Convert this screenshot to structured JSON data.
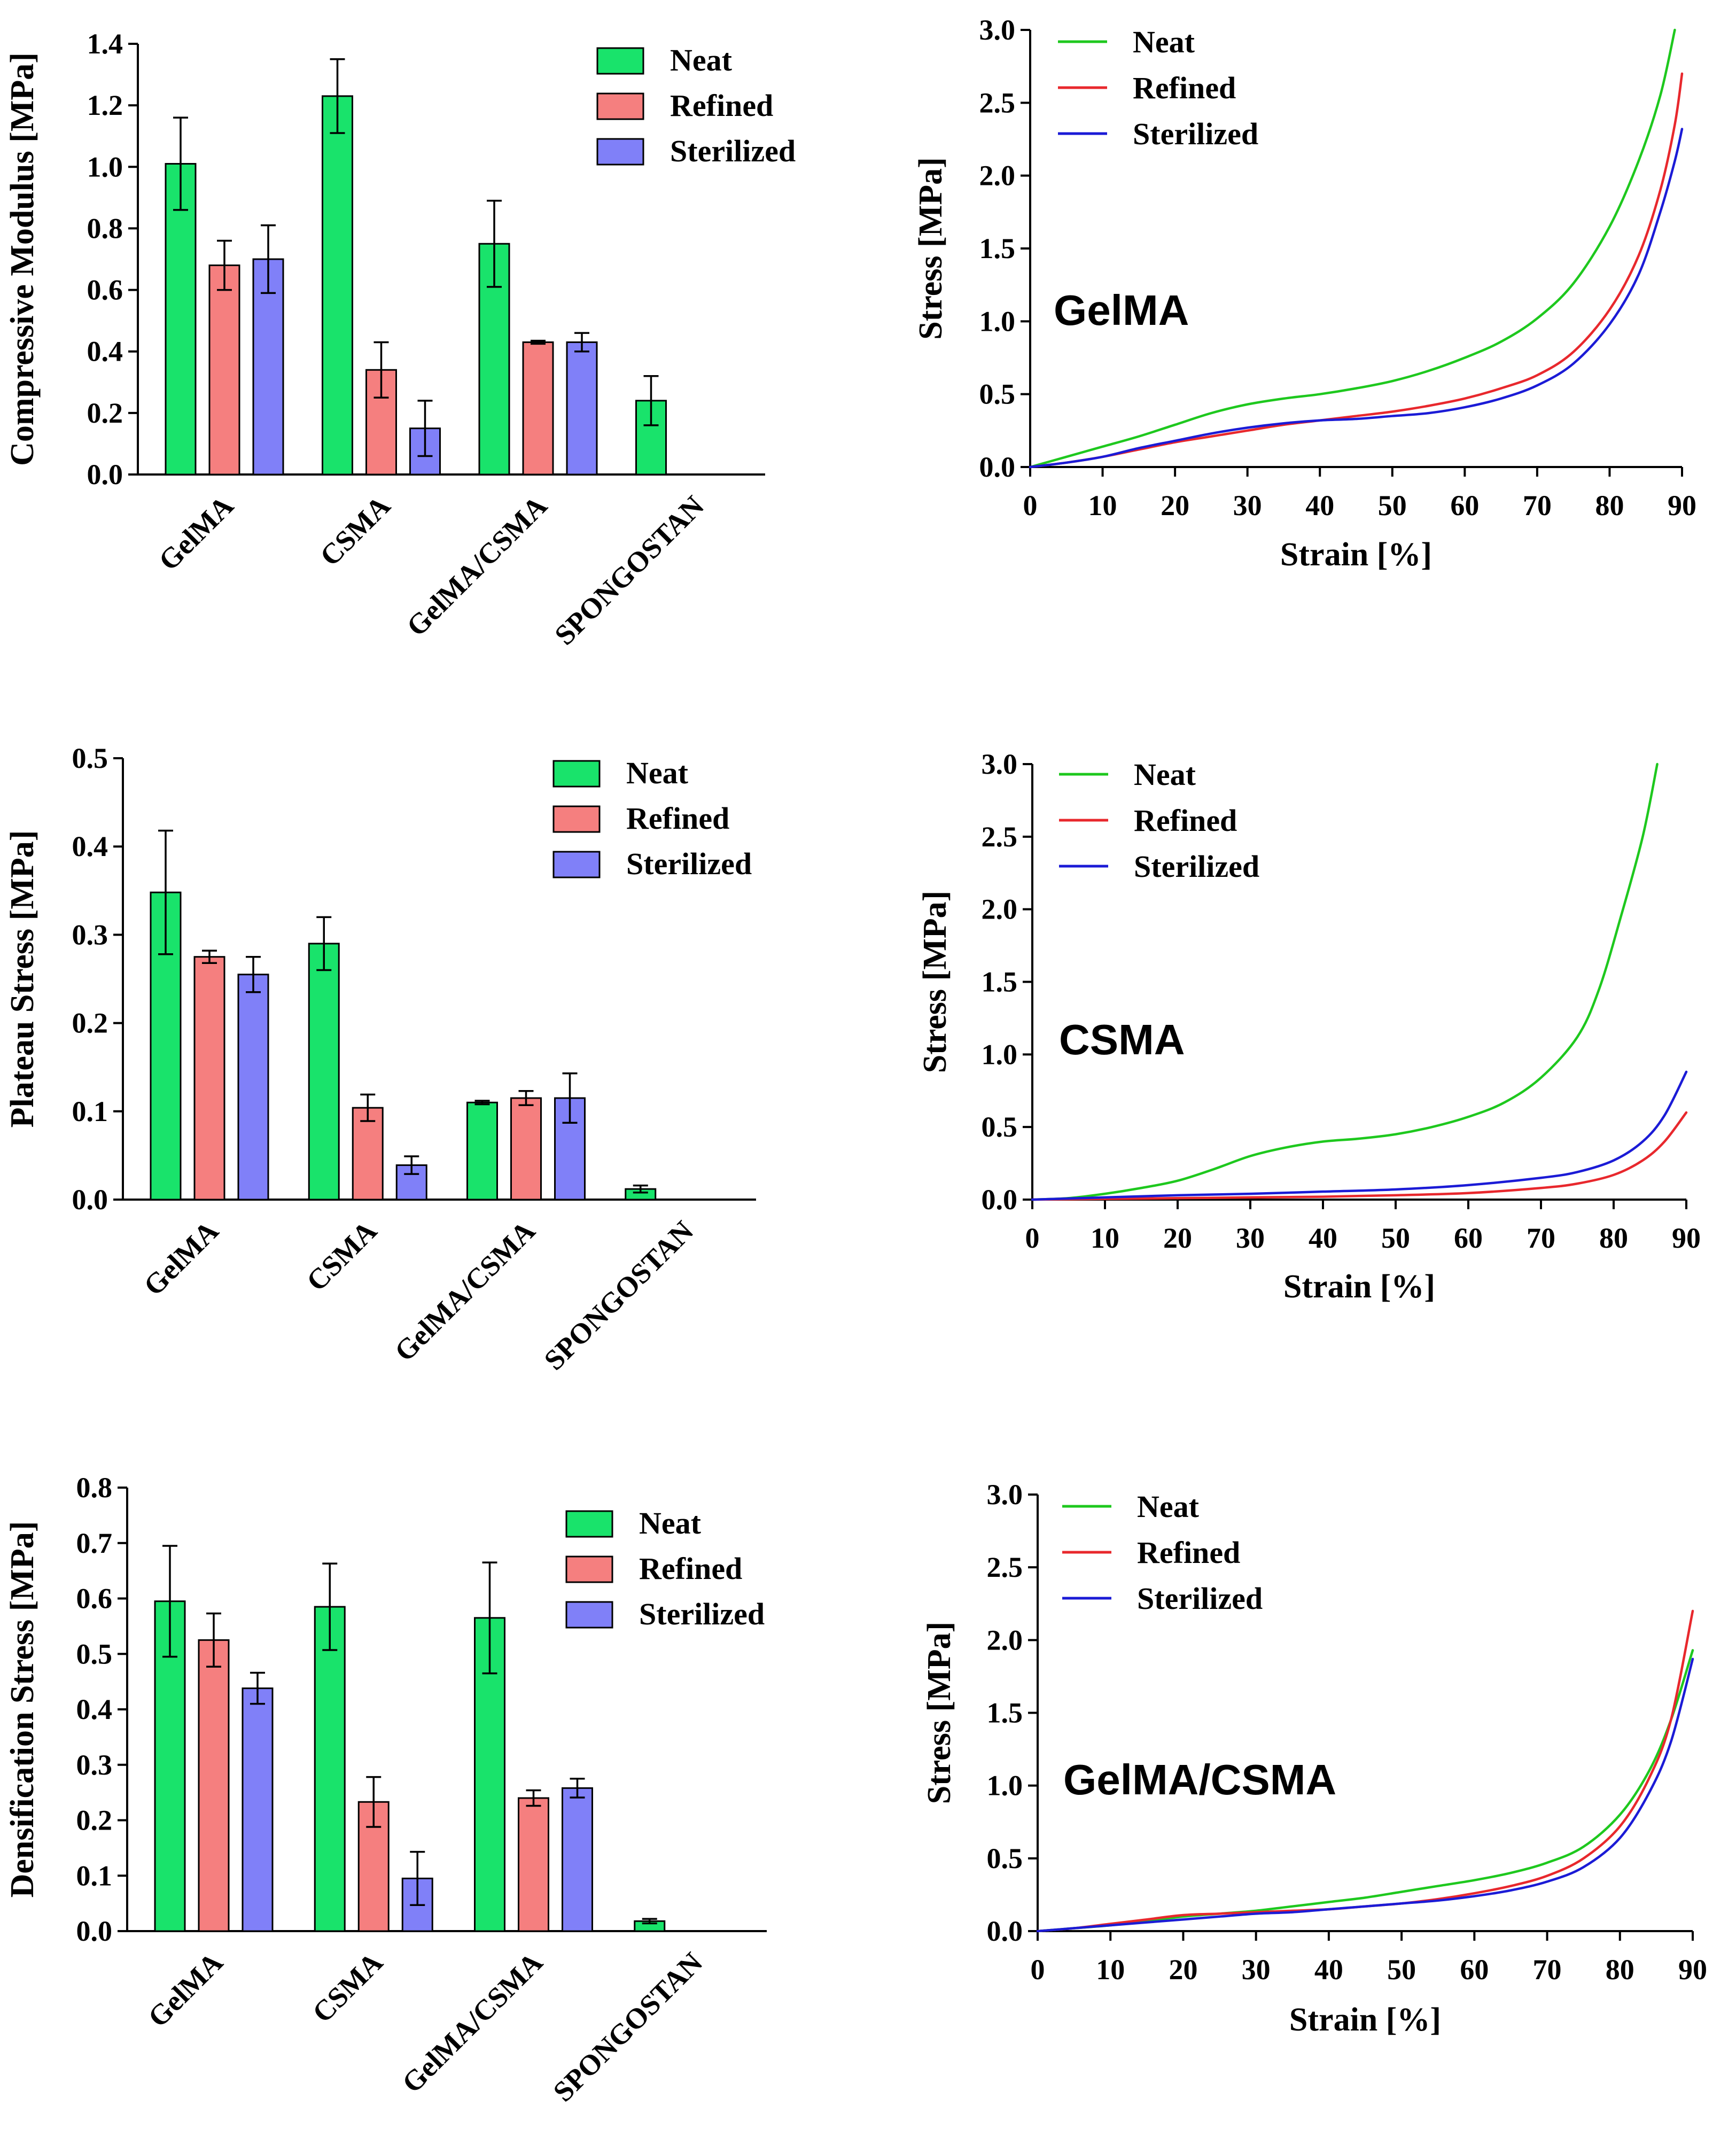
{
  "colors": {
    "neat_bar": "#19e36b",
    "refined_bar": "#f57f7f",
    "sterilized_bar": "#8080f8",
    "neat_line": "#1ec81e",
    "refined_line": "#e8282d",
    "sterilized_line": "#1b1bd6"
  },
  "chart_data": [
    {
      "id": "compressive-modulus",
      "type": "bar",
      "ylabel": "Compressive Modulus [MPa]",
      "ylim": [
        0,
        1.4
      ],
      "yticks": [
        0.0,
        0.2,
        0.4,
        0.6,
        0.8,
        1.0,
        1.2,
        1.4
      ],
      "ytick_labels": [
        "0.0",
        "0.2",
        "0.4",
        "0.6",
        "0.8",
        "1.0",
        "1.2",
        "1.4"
      ],
      "categories": [
        "GelMA",
        "CSMA",
        "GelMA/CSMA",
        "SPONGOSTAN"
      ],
      "legend": [
        "Neat",
        "Refined",
        "Sterilized"
      ],
      "series": [
        {
          "name": "Neat",
          "values": [
            1.01,
            1.23,
            0.75,
            0.24
          ],
          "errors": [
            0.15,
            0.12,
            0.14,
            0.08
          ]
        },
        {
          "name": "Refined",
          "values": [
            0.68,
            0.34,
            0.43,
            null
          ],
          "errors": [
            0.08,
            0.09,
            0.005,
            null
          ]
        },
        {
          "name": "Sterilized",
          "values": [
            0.7,
            0.15,
            0.43,
            null
          ],
          "errors": [
            0.11,
            0.09,
            0.03,
            null
          ]
        }
      ]
    },
    {
      "id": "gelma-stress-strain",
      "type": "line",
      "annotation": "GelMA",
      "xlabel": "Strain [%]",
      "ylabel": "Stress [MPa]",
      "xlim": [
        0,
        90
      ],
      "ylim": [
        0,
        3.0
      ],
      "xticks": [
        0,
        10,
        20,
        30,
        40,
        50,
        60,
        70,
        80,
        90
      ],
      "xtick_labels": [
        "0",
        "10",
        "20",
        "30",
        "40",
        "50",
        "60",
        "70",
        "80",
        "90"
      ],
      "yticks": [
        0.0,
        0.5,
        1.0,
        1.5,
        2.0,
        2.5,
        3.0
      ],
      "ytick_labels": [
        "0.0",
        "0.5",
        "1.0",
        "1.5",
        "2.0",
        "2.5",
        "3.0"
      ],
      "legend": [
        "Neat",
        "Refined",
        "Sterilized"
      ],
      "series": [
        {
          "name": "Neat",
          "x": [
            0,
            5,
            10,
            15,
            20,
            25,
            30,
            35,
            40,
            45,
            50,
            55,
            60,
            65,
            70,
            75,
            80,
            84,
            87,
            89
          ],
          "y": [
            0,
            0.07,
            0.14,
            0.21,
            0.29,
            0.37,
            0.43,
            0.47,
            0.5,
            0.54,
            0.59,
            0.66,
            0.75,
            0.86,
            1.02,
            1.26,
            1.65,
            2.1,
            2.55,
            3.0
          ]
        },
        {
          "name": "Refined",
          "x": [
            0,
            5,
            10,
            15,
            20,
            25,
            30,
            35,
            40,
            45,
            50,
            55,
            60,
            65,
            70,
            75,
            80,
            84,
            87,
            89,
            90
          ],
          "y": [
            0,
            0.03,
            0.07,
            0.12,
            0.17,
            0.21,
            0.25,
            0.29,
            0.32,
            0.35,
            0.38,
            0.42,
            0.47,
            0.54,
            0.63,
            0.79,
            1.08,
            1.45,
            1.9,
            2.35,
            2.7
          ]
        },
        {
          "name": "Sterilized",
          "x": [
            0,
            5,
            10,
            15,
            20,
            25,
            30,
            35,
            40,
            45,
            50,
            55,
            60,
            65,
            70,
            75,
            80,
            84,
            87,
            89,
            90
          ],
          "y": [
            0,
            0.03,
            0.07,
            0.13,
            0.18,
            0.23,
            0.27,
            0.3,
            0.32,
            0.33,
            0.35,
            0.37,
            0.41,
            0.47,
            0.56,
            0.71,
            0.98,
            1.32,
            1.75,
            2.1,
            2.32
          ]
        }
      ]
    },
    {
      "id": "plateau-stress",
      "type": "bar",
      "ylabel": "Plateau Stress [MPa]",
      "ylim": [
        0,
        0.5
      ],
      "yticks": [
        0.0,
        0.1,
        0.2,
        0.3,
        0.4,
        0.5
      ],
      "ytick_labels": [
        "0.0",
        "0.1",
        "0.2",
        "0.3",
        "0.4",
        "0.5"
      ],
      "categories": [
        "GelMA",
        "CSMA",
        "GelMA/CSMA",
        "SPONGOSTAN"
      ],
      "legend": [
        "Neat",
        "Refined",
        "Sterilized"
      ],
      "series": [
        {
          "name": "Neat",
          "values": [
            0.348,
            0.29,
            0.11,
            0.012
          ],
          "errors": [
            0.07,
            0.03,
            0.002,
            0.004
          ]
        },
        {
          "name": "Refined",
          "values": [
            0.275,
            0.104,
            0.115,
            null
          ],
          "errors": [
            0.007,
            0.015,
            0.008,
            null
          ]
        },
        {
          "name": "Sterilized",
          "values": [
            0.255,
            0.039,
            0.115,
            null
          ],
          "errors": [
            0.02,
            0.01,
            0.028,
            null
          ]
        }
      ]
    },
    {
      "id": "csma-stress-strain",
      "type": "line",
      "annotation": "CSMA",
      "xlabel": "Strain [%]",
      "ylabel": "Stress [MPa]",
      "xlim": [
        0,
        90
      ],
      "ylim": [
        0,
        3.0
      ],
      "xticks": [
        0,
        10,
        20,
        30,
        40,
        50,
        60,
        70,
        80,
        90
      ],
      "xtick_labels": [
        "0",
        "10",
        "20",
        "30",
        "40",
        "50",
        "60",
        "70",
        "80",
        "90"
      ],
      "yticks": [
        0.0,
        0.5,
        1.0,
        1.5,
        2.0,
        2.5,
        3.0
      ],
      "ytick_labels": [
        "0.0",
        "0.5",
        "1.0",
        "1.5",
        "2.0",
        "2.5",
        "3.0"
      ],
      "legend": [
        "Neat",
        "Refined",
        "Sterilized"
      ],
      "series": [
        {
          "name": "Neat",
          "x": [
            0,
            5,
            10,
            15,
            20,
            25,
            30,
            35,
            40,
            45,
            50,
            55,
            60,
            65,
            70,
            75,
            78,
            81,
            84,
            86
          ],
          "y": [
            0,
            0.01,
            0.04,
            0.08,
            0.13,
            0.21,
            0.3,
            0.36,
            0.4,
            0.42,
            0.45,
            0.5,
            0.57,
            0.67,
            0.84,
            1.12,
            1.45,
            1.95,
            2.5,
            3.0
          ]
        },
        {
          "name": "Refined",
          "x": [
            0,
            10,
            20,
            30,
            40,
            50,
            60,
            70,
            75,
            80,
            84,
            87,
            90
          ],
          "y": [
            0,
            0.005,
            0.01,
            0.015,
            0.02,
            0.03,
            0.045,
            0.08,
            0.11,
            0.17,
            0.27,
            0.4,
            0.6
          ]
        },
        {
          "name": "Sterilized",
          "x": [
            0,
            10,
            20,
            30,
            40,
            50,
            60,
            70,
            75,
            80,
            84,
            87,
            90
          ],
          "y": [
            0,
            0.015,
            0.03,
            0.04,
            0.055,
            0.07,
            0.1,
            0.15,
            0.19,
            0.27,
            0.4,
            0.58,
            0.88
          ]
        }
      ]
    },
    {
      "id": "densification-stress",
      "type": "bar",
      "ylabel": "Densification Stress [MPa]",
      "ylim": [
        0,
        0.8
      ],
      "yticks": [
        0.0,
        0.1,
        0.2,
        0.3,
        0.4,
        0.5,
        0.6,
        0.7,
        0.8
      ],
      "ytick_labels": [
        "0.0",
        "0.1",
        "0.2",
        "0.3",
        "0.4",
        "0.5",
        "0.6",
        "0.7",
        "0.8"
      ],
      "categories": [
        "GelMA",
        "CSMA",
        "GelMA/CSMA",
        "SPONGOSTAN"
      ],
      "legend": [
        "Neat",
        "Refined",
        "Sterilized"
      ],
      "series": [
        {
          "name": "Neat",
          "values": [
            0.595,
            0.585,
            0.565,
            0.018
          ],
          "errors": [
            0.1,
            0.078,
            0.1,
            0.004
          ]
        },
        {
          "name": "Refined",
          "values": [
            0.525,
            0.233,
            0.24,
            null
          ],
          "errors": [
            0.048,
            0.045,
            0.014,
            null
          ]
        },
        {
          "name": "Sterilized",
          "values": [
            0.438,
            0.095,
            0.258,
            null
          ],
          "errors": [
            0.028,
            0.048,
            0.017,
            null
          ]
        }
      ]
    },
    {
      "id": "gelma-csma-stress-strain",
      "type": "line",
      "annotation": "GelMA/CSMA",
      "xlabel": "Strain [%]",
      "ylabel": "Stress [MPa]",
      "xlim": [
        0,
        90
      ],
      "ylim": [
        0,
        3.0
      ],
      "xticks": [
        0,
        10,
        20,
        30,
        40,
        50,
        60,
        70,
        80,
        90
      ],
      "xtick_labels": [
        "0",
        "10",
        "20",
        "30",
        "40",
        "50",
        "60",
        "70",
        "80",
        "90"
      ],
      "yticks": [
        0.0,
        0.5,
        1.0,
        1.5,
        2.0,
        2.5,
        3.0
      ],
      "ytick_labels": [
        "0.0",
        "0.5",
        "1.0",
        "1.5",
        "2.0",
        "2.5",
        "3.0"
      ],
      "legend": [
        "Neat",
        "Refined",
        "Sterilized"
      ],
      "series": [
        {
          "name": "Neat",
          "x": [
            0,
            5,
            10,
            15,
            20,
            25,
            30,
            35,
            40,
            45,
            50,
            55,
            60,
            65,
            70,
            75,
            80,
            84,
            87,
            90
          ],
          "y": [
            0,
            0.02,
            0.04,
            0.07,
            0.1,
            0.12,
            0.14,
            0.17,
            0.2,
            0.23,
            0.27,
            0.31,
            0.35,
            0.4,
            0.47,
            0.58,
            0.8,
            1.1,
            1.45,
            1.93
          ]
        },
        {
          "name": "Refined",
          "x": [
            0,
            5,
            10,
            15,
            20,
            25,
            30,
            35,
            40,
            45,
            50,
            55,
            60,
            65,
            70,
            75,
            80,
            84,
            87,
            90
          ],
          "y": [
            0,
            0.02,
            0.05,
            0.08,
            0.11,
            0.12,
            0.13,
            0.14,
            0.15,
            0.17,
            0.19,
            0.22,
            0.26,
            0.31,
            0.38,
            0.5,
            0.72,
            1.05,
            1.45,
            2.2
          ]
        },
        {
          "name": "Sterilized",
          "x": [
            0,
            5,
            10,
            15,
            20,
            25,
            30,
            35,
            40,
            45,
            50,
            55,
            60,
            65,
            70,
            75,
            80,
            84,
            87,
            90
          ],
          "y": [
            0,
            0.02,
            0.04,
            0.06,
            0.08,
            0.1,
            0.12,
            0.13,
            0.15,
            0.17,
            0.19,
            0.21,
            0.24,
            0.28,
            0.34,
            0.44,
            0.64,
            0.95,
            1.3,
            1.87
          ]
        }
      ]
    }
  ]
}
